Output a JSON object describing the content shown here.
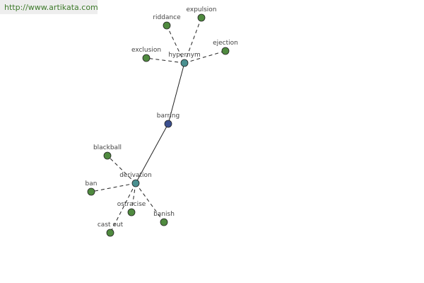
{
  "header": {
    "url": "http://www.artikata.com"
  },
  "nodes": [
    {
      "label": "barring"
    },
    {
      "label": "hypernym"
    },
    {
      "label": "derivation"
    },
    {
      "label": "riddance"
    },
    {
      "label": "expulsion"
    },
    {
      "label": "exclusion"
    },
    {
      "label": "ejection"
    },
    {
      "label": "blackball"
    },
    {
      "label": "ban"
    },
    {
      "label": "ostracise"
    },
    {
      "label": "cast out"
    },
    {
      "label": "banish"
    }
  ]
}
